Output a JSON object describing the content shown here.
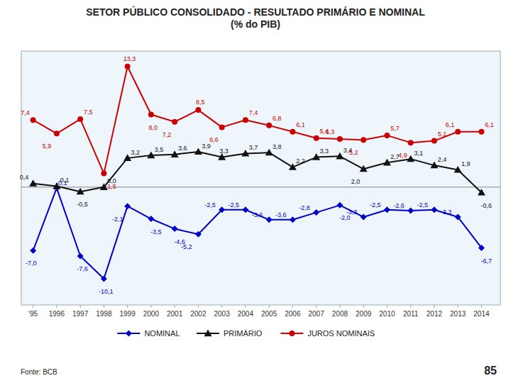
{
  "chart_data": {
    "type": "line",
    "title": "SETOR PÚBLICO CONSOLIDADO - RESULTADO PRIMÁRIO E NOMINAL\n(% do PIB)",
    "x": [
      1995,
      1996,
      1997,
      1998,
      1999,
      2000,
      2001,
      2002,
      2003,
      2004,
      2005,
      2006,
      2007,
      2008,
      2009,
      2010,
      2011,
      2012,
      2013,
      2014
    ],
    "xlim": [
      1994.5,
      2014.8
    ],
    "xticks": [
      {
        "value": 1995,
        "label": "'95"
      },
      1996,
      1997,
      1998,
      1999,
      2000,
      2001,
      2002,
      2003,
      2004,
      2005,
      2006,
      2007,
      2008,
      2009,
      2010,
      2011,
      2012,
      2013,
      2014
    ],
    "ylim": [
      -13,
      15
    ],
    "yticks": [
      0
    ],
    "tick_labels": "x",
    "grid": false,
    "legend": "bottom",
    "data_labels": true,
    "series": [
      {
        "name": "NOMINAL",
        "color": "#0000CC",
        "marker": "diamond",
        "values": [
          -7.0,
          -0.1,
          -7.6,
          -10.1,
          -2.1,
          -3.5,
          -4.6,
          -5.2,
          -2.5,
          -2.5,
          -3.6,
          -3.6,
          -2.8,
          -2.0,
          -3.3,
          -2.5,
          -2.6,
          -2.5,
          -3.3,
          -6.7
        ],
        "value_labels": [
          "-7,0",
          "-0,1",
          "-7,6",
          "-10,1",
          "-2,1",
          "-3,5",
          "-4,6",
          "-5,2",
          "-2,5",
          "-2,5",
          "-3,6",
          "-3,6",
          "-2,8",
          "-2,0",
          "-3,3",
          "-2,5",
          "-2,6",
          "-2,5",
          "-3,3",
          "-6,7"
        ]
      },
      {
        "name": "PRIMÁRIO",
        "color": "#111111",
        "marker": "triangle",
        "values": [
          0.4,
          0.1,
          -0.5,
          0.0,
          3.2,
          3.5,
          3.6,
          3.9,
          3.3,
          3.7,
          3.8,
          2.2,
          3.3,
          3.4,
          2.0,
          2.7,
          3.1,
          2.4,
          1.9,
          -0.6
        ],
        "value_labels": [
          "0,4",
          "0,1",
          "-0,5",
          "0,0",
          "3,2",
          "3,5",
          "3,6",
          "3,9",
          "3,3",
          "3,7",
          "3,8",
          "2,2",
          "3,3",
          "3,4",
          "2,0",
          "2,7",
          "3,1",
          "2,4",
          "1,9",
          "-0,6"
        ]
      },
      {
        "name": "JUROS NOMINAIS",
        "color": "#CC0000",
        "marker": "circle",
        "values": [
          7.4,
          5.9,
          7.5,
          1.5,
          13.3,
          8.0,
          7.2,
          8.5,
          6.6,
          7.4,
          6.8,
          6.1,
          5.4,
          5.3,
          5.2,
          5.7,
          4.9,
          5.1,
          6.1,
          6.1
        ],
        "value_labels": [
          "7,4",
          "5,9",
          "7,5",
          "1,5",
          "13,3",
          "8,0",
          "7,2",
          "8,5",
          "6,6",
          "7,4",
          "6,8",
          "6,1",
          "5,4",
          "5,3",
          "5,2",
          "5,7",
          "4,9",
          "5,1",
          "6,1",
          "6,1"
        ]
      }
    ],
    "annotations": [
      "Fonte: BCB",
      "85"
    ]
  }
}
